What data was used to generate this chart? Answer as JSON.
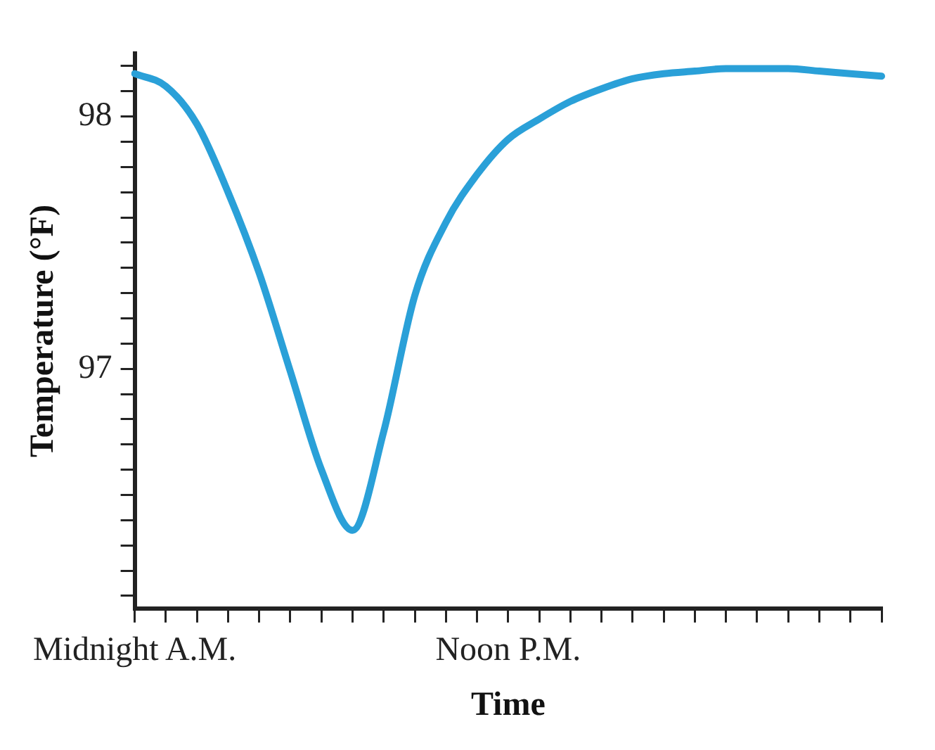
{
  "chart_data": {
    "type": "line",
    "xlabel": "Time",
    "ylabel": "Temperature (°F)",
    "categories": [
      "Midnight A.M.",
      null,
      null,
      null,
      null,
      null,
      null,
      null,
      null,
      null,
      null,
      null,
      "Noon P.M.",
      null,
      null,
      null,
      null,
      null,
      null,
      null,
      null,
      null,
      null,
      null,
      null
    ],
    "series": [
      {
        "color": "#2aa0d8",
        "values": [
          98.17,
          98.12,
          97.97,
          97.7,
          97.38,
          96.99,
          96.6,
          96.36,
          96.75,
          97.29,
          97.58,
          97.77,
          97.91,
          97.99,
          98.06,
          98.11,
          98.15,
          98.17,
          98.18,
          98.19,
          98.19,
          98.19,
          98.18,
          98.17,
          98.16
        ]
      }
    ],
    "ylim": [
      96.05,
      98.25
    ],
    "yticks": [
      {
        "value": 96.1,
        "label": null
      },
      {
        "value": 96.2,
        "label": null
      },
      {
        "value": 96.3,
        "label": null
      },
      {
        "value": 96.4,
        "label": null
      },
      {
        "value": 96.5,
        "label": null
      },
      {
        "value": 96.6,
        "label": null
      },
      {
        "value": 96.7,
        "label": null
      },
      {
        "value": 96.8,
        "label": null
      },
      {
        "value": 96.9,
        "label": null
      },
      97,
      {
        "value": 97.1,
        "label": null
      },
      {
        "value": 97.2,
        "label": null
      },
      {
        "value": 97.3,
        "label": null
      },
      {
        "value": 97.4,
        "label": null
      },
      {
        "value": 97.5,
        "label": null
      },
      {
        "value": 97.6,
        "label": null
      },
      {
        "value": 97.7,
        "label": null
      },
      {
        "value": 97.8,
        "label": null
      },
      {
        "value": 97.9,
        "label": null
      },
      98,
      {
        "value": 98.1,
        "label": null
      },
      {
        "value": 98.2,
        "label": null
      }
    ],
    "grid": false,
    "legend": false,
    "marker": "none",
    "line_style": "solid"
  }
}
